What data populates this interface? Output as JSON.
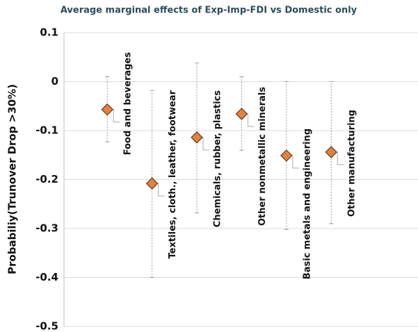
{
  "chart_data": {
    "type": "errorbar",
    "title": "Average marginal effects of Exp-Imp-FDI vs Domestic only",
    "y_label": "Probabiliy(Trunover Drop >30%)",
    "categories": [
      "Food and beverages",
      "Textiles, cloth., leather, footwear",
      "Chemicals, rubber, plastics",
      "Other nonmetallic minerals",
      "Basic metals and engineering",
      "Other manufacturing"
    ],
    "values": [
      -0.057,
      -0.208,
      -0.114,
      -0.066,
      -0.151,
      -0.144
    ],
    "ci_low": [
      -0.123,
      -0.4,
      -0.268,
      -0.14,
      -0.302,
      -0.29
    ],
    "ci_high": [
      0.01,
      -0.018,
      0.038,
      0.01,
      0,
      0
    ],
    "color": "#e8803a",
    "ylim": [
      -0.5,
      0.1
    ],
    "yticks": [
      -0.5,
      -0.4,
      -0.3,
      -0.2,
      -0.1,
      0,
      0.1
    ],
    "grid": true
  }
}
